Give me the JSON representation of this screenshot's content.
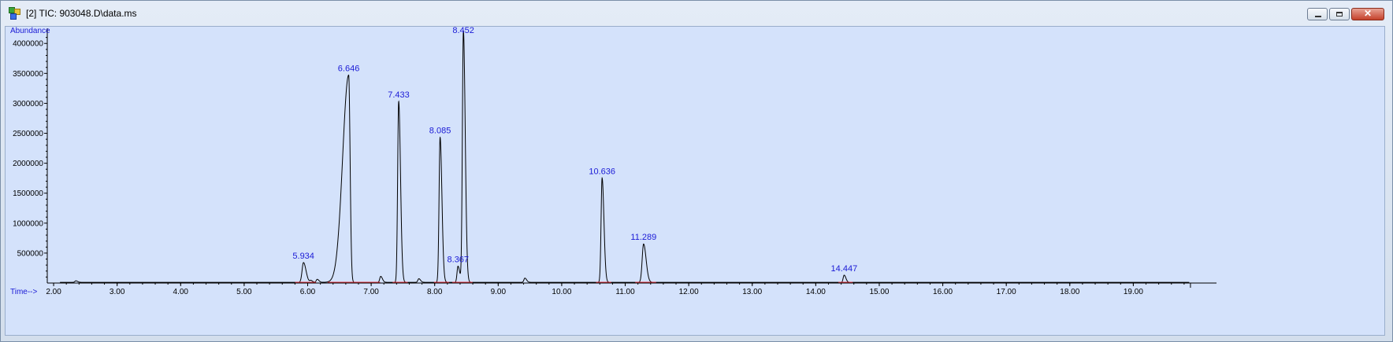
{
  "window": {
    "title": "[2] TIC: 903048.D\\data.ms",
    "buttons": [
      "minimize",
      "maximize",
      "close"
    ]
  },
  "icons": {
    "app": "chromatogram-app-icon",
    "minimize": "minimize-icon",
    "maximize": "maximize-icon",
    "close": "close-icon"
  },
  "colors": {
    "plot_background": "#d4e2fb",
    "trace": "#000000",
    "peak_label": "#1b1bd6",
    "baseline_marks": "#e0303a"
  },
  "chart_data": {
    "type": "line",
    "ylabel": "Abundance",
    "xlabel": "Time-->",
    "xlim": [
      1.9,
      20.0
    ],
    "ylim": [
      0,
      4200000
    ],
    "x_ticks": [
      "2.00",
      "3.00",
      "4.00",
      "5.00",
      "6.00",
      "7.00",
      "8.00",
      "9.00",
      "10.00",
      "11.00",
      "12.00",
      "13.00",
      "14.00",
      "15.00",
      "16.00",
      "17.00",
      "18.00",
      "19.00"
    ],
    "x_tick_values": [
      2,
      3,
      4,
      5,
      6,
      7,
      8,
      9,
      10,
      11,
      12,
      13,
      14,
      15,
      16,
      17,
      18,
      19
    ],
    "y_ticks": [
      "500000",
      "1000000",
      "1500000",
      "2000000",
      "2500000",
      "3000000",
      "3500000",
      "4000000"
    ],
    "y_tick_values": [
      500000,
      1000000,
      1500000,
      2000000,
      2500000,
      3000000,
      3500000,
      4000000
    ],
    "peaks": [
      {
        "label": "5.934",
        "rt": 5.934,
        "height": 330000
      },
      {
        "label": "6.646",
        "rt": 6.646,
        "height": 3460000
      },
      {
        "label": "7.433",
        "rt": 7.433,
        "height": 3020000
      },
      {
        "label": "8.085",
        "rt": 8.085,
        "height": 2420000
      },
      {
        "label": "8.367",
        "rt": 8.367,
        "height": 270000
      },
      {
        "label": "8.452",
        "rt": 8.452,
        "height": 4200000
      },
      {
        "label": "10.636",
        "rt": 10.636,
        "height": 1740000
      },
      {
        "label": "11.289",
        "rt": 11.289,
        "height": 640000
      },
      {
        "label": "14.447",
        "rt": 14.447,
        "height": 120000
      }
    ],
    "minor_peaks": [
      {
        "rt": 2.35,
        "height": 25000
      },
      {
        "rt": 6.05,
        "height": 30000
      },
      {
        "rt": 6.15,
        "height": 50000
      },
      {
        "rt": 7.15,
        "height": 100000
      },
      {
        "rt": 7.75,
        "height": 60000
      },
      {
        "rt": 9.42,
        "height": 70000
      }
    ]
  }
}
